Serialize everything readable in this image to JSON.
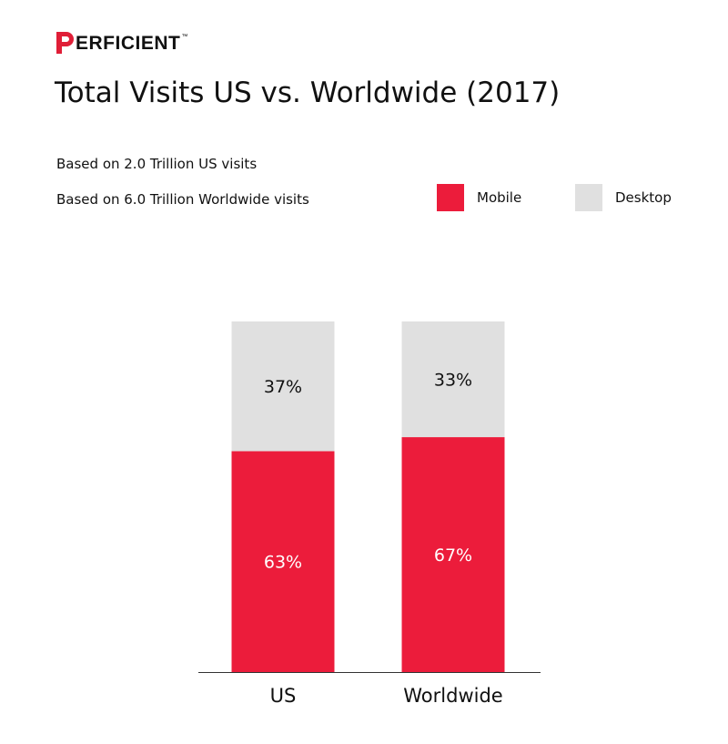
{
  "brand": {
    "name": "ERFICIENT",
    "tm": "™",
    "color": "#e01e37"
  },
  "header": {
    "title": "Total Visits US vs. Worldwide (2017)",
    "subtitles": [
      "Based on 2.0 Trillion US visits",
      "Based on 6.0 Trillion Worldwide visits"
    ]
  },
  "legend": {
    "items": [
      {
        "label": "Mobile",
        "color": "#ec1c3b"
      },
      {
        "label": "Desktop",
        "color": "#e0e0e0"
      }
    ]
  },
  "chart_data": {
    "type": "bar",
    "stacked": true,
    "categories": [
      "US",
      "Worldwide"
    ],
    "series": [
      {
        "name": "Mobile",
        "color": "#ec1c3b",
        "values": [
          63,
          67
        ],
        "labels": [
          "63%",
          "67%"
        ]
      },
      {
        "name": "Desktop",
        "color": "#e0e0e0",
        "values": [
          37,
          33
        ],
        "labels": [
          "37%",
          "33%"
        ]
      }
    ],
    "ylim": [
      0,
      100
    ],
    "unit": "%",
    "title": "Total Visits US vs. Worldwide (2017)",
    "xlabel": "",
    "ylabel": "",
    "grid": false,
    "legend_position": "top-right"
  }
}
